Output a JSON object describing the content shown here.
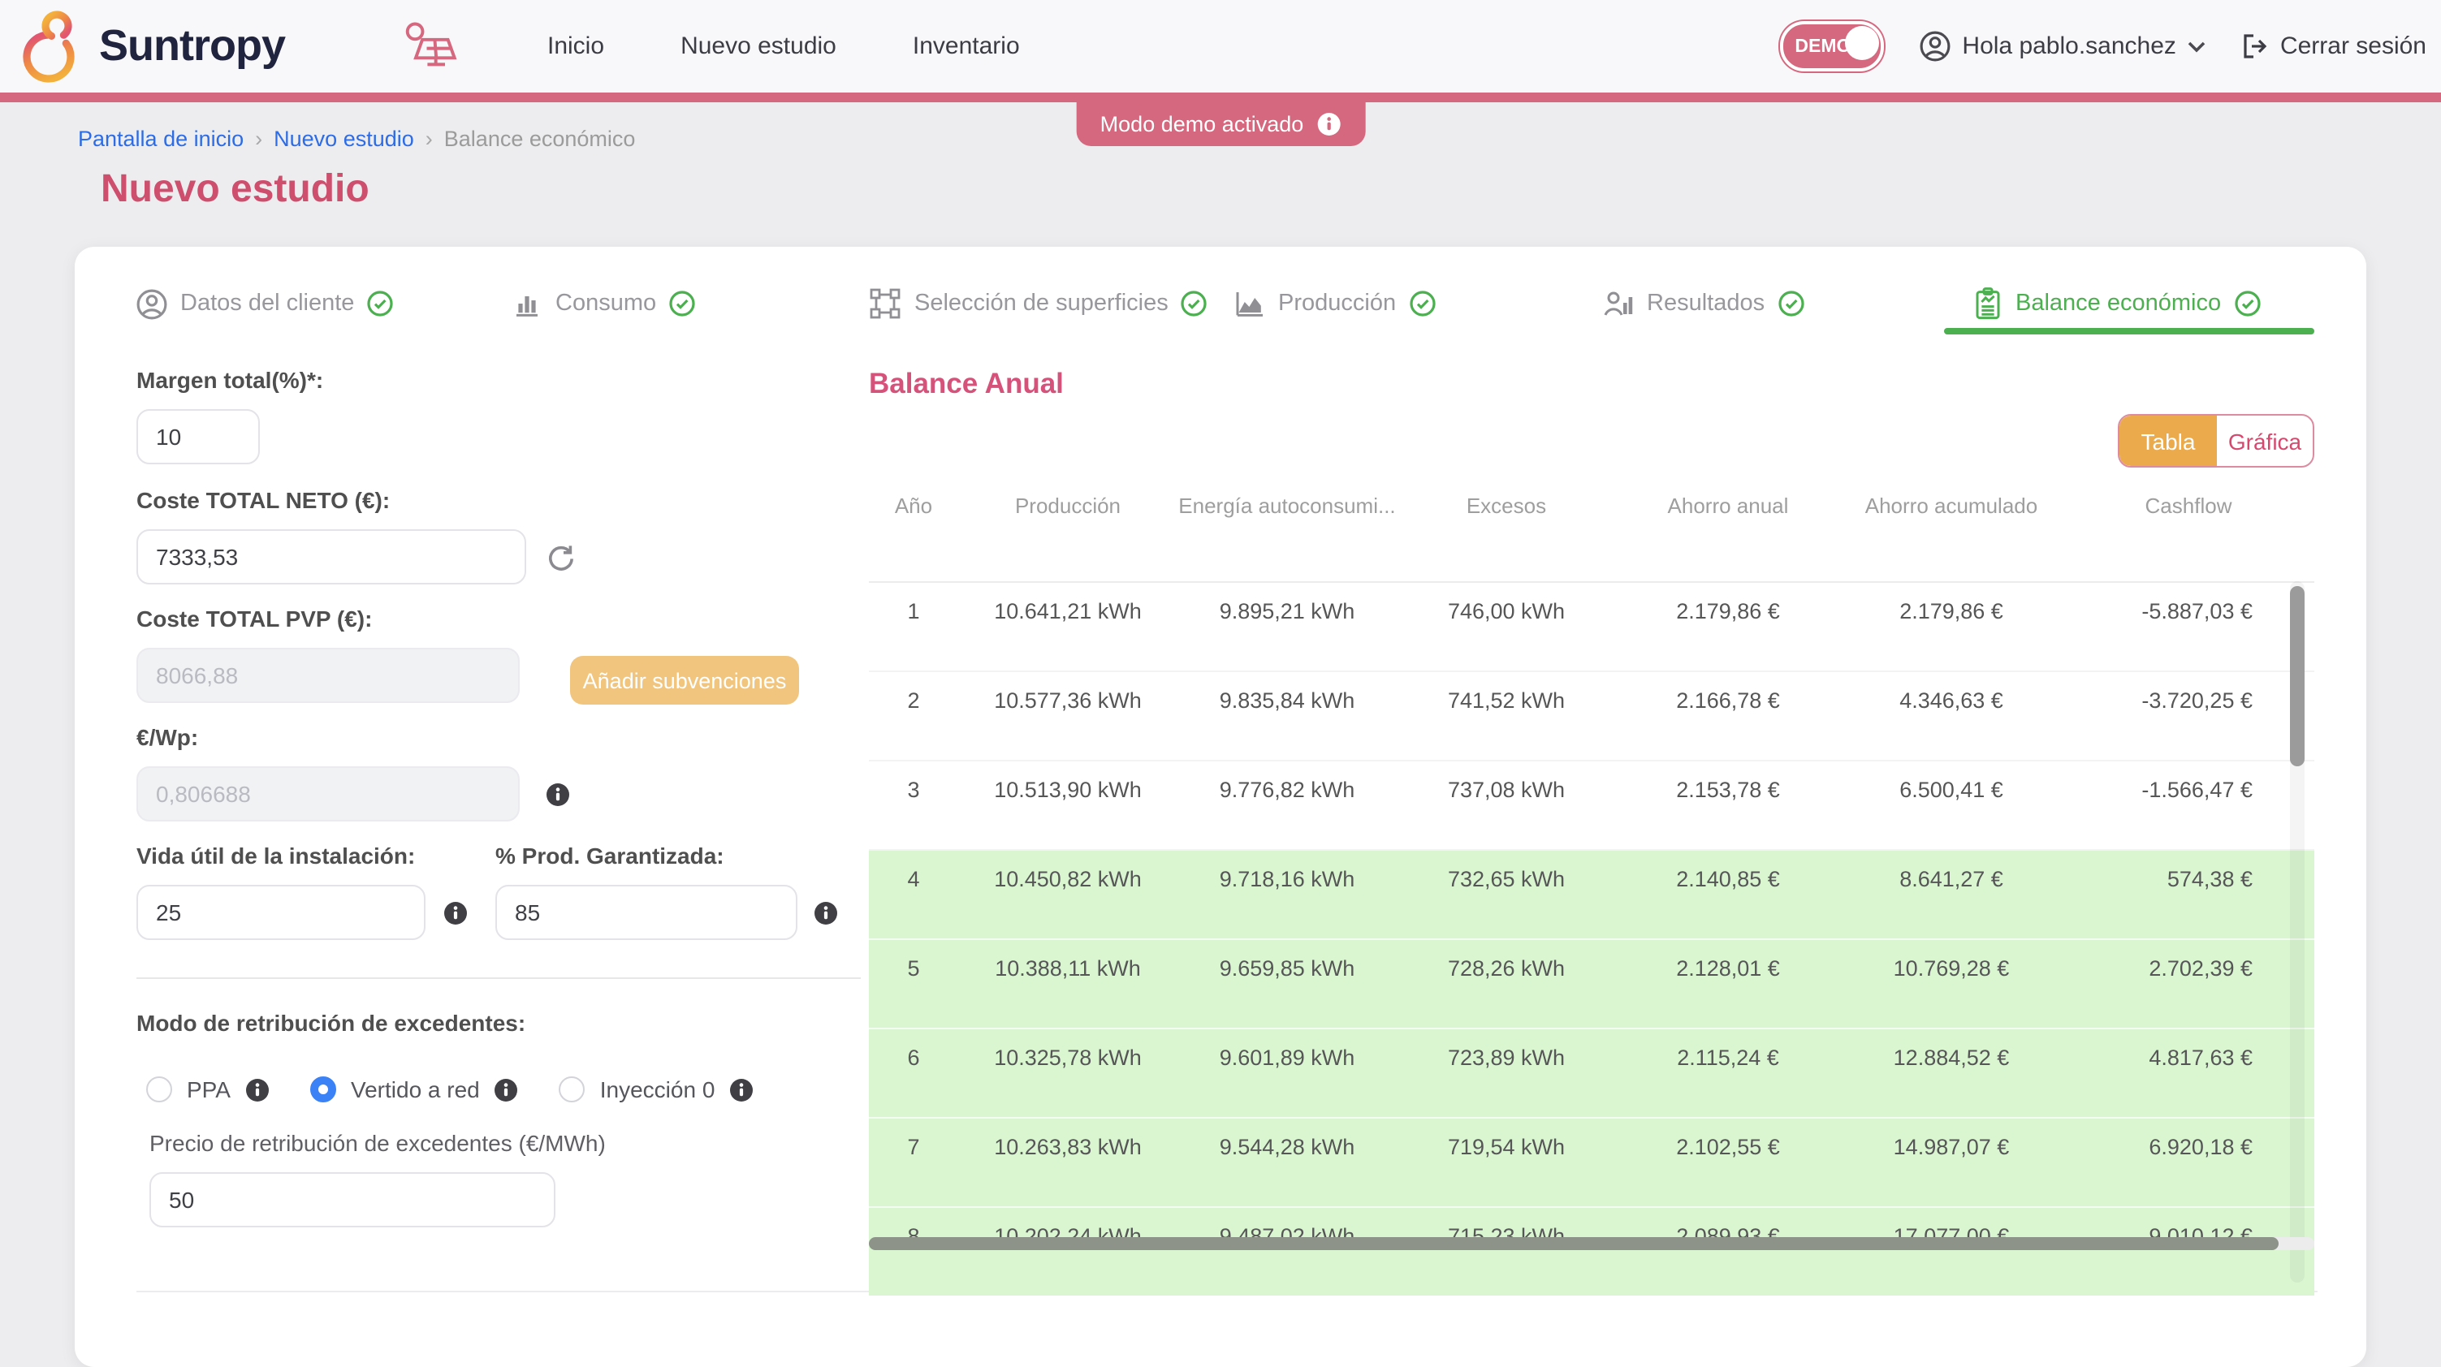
{
  "header": {
    "brand": "Suntropy",
    "nav": [
      {
        "label": "Inicio"
      },
      {
        "label": "Nuevo estudio"
      },
      {
        "label": "Inventario"
      }
    ],
    "demo_toggle_label": "DEMO",
    "user_greeting": "Hola pablo.sanchez",
    "logout_label": "Cerrar sesión"
  },
  "accent_color": "#d5687f",
  "demo_banner": {
    "label": "Modo demo activado"
  },
  "breadcrumb": {
    "separator": "›",
    "items": [
      {
        "label": "Pantalla de inicio",
        "link": true
      },
      {
        "label": "Nuevo estudio",
        "link": true
      },
      {
        "label": "Balance económico",
        "link": false
      }
    ]
  },
  "page_title": "Nuevo estudio",
  "wizard_tabs": [
    {
      "label": "Datos del cliente",
      "icon": "user-icon",
      "completed": true,
      "active": false
    },
    {
      "label": "Consumo",
      "icon": "bar-chart-icon",
      "completed": true,
      "active": false
    },
    {
      "label": "Selección de superficies",
      "icon": "surface-selection-icon",
      "completed": true,
      "active": false
    },
    {
      "label": "Producción",
      "icon": "area-chart-icon",
      "completed": true,
      "active": false
    },
    {
      "label": "Resultados",
      "icon": "results-icon",
      "completed": true,
      "active": false
    },
    {
      "label": "Balance económico",
      "icon": "clipboard-chart-icon",
      "completed": true,
      "active": true
    }
  ],
  "form": {
    "margen_label": "Margen total(%)*:",
    "margen_value": "10",
    "coste_neto_label": "Coste TOTAL NETO (€):",
    "coste_neto_value": "7333,53",
    "coste_pvp_label": "Coste TOTAL PVP (€):",
    "coste_pvp_value": "8066,88",
    "add_subsidies_label": "Añadir subvenciones",
    "eur_wp_label": "€/Wp:",
    "eur_wp_value": "0,806688",
    "vida_util_label": "Vida útil de la instalación:",
    "vida_util_value": "25",
    "prod_garantizada_label": "% Prod. Garantizada:",
    "prod_garantizada_value": "85",
    "retribucion_label": "Modo de retribución de excedentes:",
    "surplus_options": [
      {
        "label": "PPA",
        "selected": false
      },
      {
        "label": "Vertido a red",
        "selected": true
      },
      {
        "label": "Inyección 0",
        "selected": false
      }
    ],
    "precio_label": "Precio de retribución de excedentes (€/MWh)",
    "precio_value": "50"
  },
  "balance": {
    "title": "Balance Anual",
    "view_toggle": {
      "table_label": "Tabla",
      "chart_label": "Gráfica",
      "active": "Tabla",
      "active_color": "#ebaa4b"
    },
    "table": {
      "columns": [
        "Año",
        "Producción",
        "Energía autoconsumi...",
        "Excesos",
        "Ahorro anual",
        "Ahorro acumulado",
        "Cashflow"
      ],
      "rows": [
        [
          "1",
          "10.641,21 kWh",
          "9.895,21 kWh",
          "746,00 kWh",
          "2.179,86 €",
          "2.179,86 €",
          "-5.887,03 €"
        ],
        [
          "2",
          "10.577,36 kWh",
          "9.835,84 kWh",
          "741,52 kWh",
          "2.166,78 €",
          "4.346,63 €",
          "-3.720,25 €"
        ],
        [
          "3",
          "10.513,90 kWh",
          "9.776,82 kWh",
          "737,08 kWh",
          "2.153,78 €",
          "6.500,41 €",
          "-1.566,47 €"
        ],
        [
          "4",
          "10.450,82 kWh",
          "9.718,16 kWh",
          "732,65 kWh",
          "2.140,85 €",
          "8.641,27 €",
          "574,38 €"
        ],
        [
          "5",
          "10.388,11 kWh",
          "9.659,85 kWh",
          "728,26 kWh",
          "2.128,01 €",
          "10.769,28 €",
          "2.702,39 €"
        ],
        [
          "6",
          "10.325,78 kWh",
          "9.601,89 kWh",
          "723,89 kWh",
          "2.115,24 €",
          "12.884,52 €",
          "4.817,63 €"
        ],
        [
          "7",
          "10.263,83 kWh",
          "9.544,28 kWh",
          "719,54 kWh",
          "2.102,55 €",
          "14.987,07 €",
          "6.920,18 €"
        ],
        [
          "8",
          "10.202,24 kWh",
          "9.487,02 kWh",
          "715,23 kWh",
          "2.089,93 €",
          "17.077,00 €",
          "9.010,12 €"
        ]
      ],
      "highlight_rows_from": 4,
      "highlight_color": "#d9f6d1"
    }
  }
}
